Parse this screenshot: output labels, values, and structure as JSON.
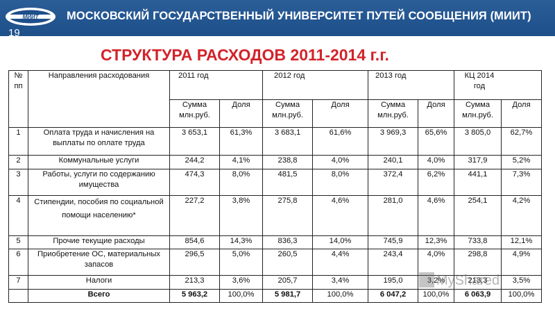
{
  "header": {
    "title": "МОСКОВСКИЙ ГОСУДАРСТВЕННЫЙ УНИВЕРСИТЕТ ПУТЕЙ СООБЩЕНИЯ (МИИТ)",
    "logo_text": "МИИТ",
    "slide_number": "19"
  },
  "slide_title": "СТРУКТУРА РАСХОДОВ 2011-2014 г.г.",
  "table": {
    "h_num": "№ пп",
    "h_direction": "Направления расходования",
    "years": [
      "2011 год",
      "2012 год",
      "2013 год",
      "КЦ 2014 год"
    ],
    "h_sum": "Сумма млн.руб.",
    "h_share": "Доля",
    "rows": [
      {
        "n": "1",
        "name": "Оплата труда и начисления на выплаты по оплате труда",
        "v": [
          "3 653,1",
          "61,3%",
          "3 683,1",
          "61,6%",
          "3 969,3",
          "65,6%",
          "3 805,0",
          "62,7%"
        ]
      },
      {
        "n": "2",
        "name": "Коммунальные услуги",
        "v": [
          "244,2",
          "4,1%",
          "238,8",
          "4,0%",
          "240,1",
          "4,0%",
          "317,9",
          "5,2%"
        ]
      },
      {
        "n": "3",
        "name": "Работы, услуги по содержанию имущества",
        "v": [
          "474,3",
          "8,0%",
          "481,5",
          "8,0%",
          "372,4",
          "6,2%",
          "441,1",
          "7,3%"
        ]
      },
      {
        "n": "4",
        "name": "Стипендии, пособия по социальной помощи населению*",
        "v": [
          "227,2",
          "3,8%",
          "275,8",
          "4,6%",
          "281,0",
          "4,6%",
          "254,1",
          "4,2%"
        ]
      },
      {
        "n": "5",
        "name": "Прочие текущие расходы",
        "v": [
          "854,6",
          "14,3%",
          "836,3",
          "14,0%",
          "745,9",
          "12,3%",
          "733,8",
          "12,1%"
        ]
      },
      {
        "n": "6",
        "name": "Приобретение ОС, материальных запасов",
        "v": [
          "296,5",
          "5,0%",
          "260,5",
          "4,4%",
          "243,4",
          "4,0%",
          "298,8",
          "4,9%"
        ]
      },
      {
        "n": "7",
        "name": "Налоги",
        "v": [
          "213,3",
          "3,6%",
          "205,7",
          "3,4%",
          "195,0",
          "3,2%",
          "213,3",
          "3,5%"
        ]
      }
    ],
    "total": {
      "name": "Всего",
      "v": [
        "5 963,2",
        "100,0%",
        "5 981,7",
        "100,0%",
        "6 047,2",
        "100,0%",
        "6 063,9",
        "100,0%"
      ]
    }
  },
  "watermark": "MyShared"
}
